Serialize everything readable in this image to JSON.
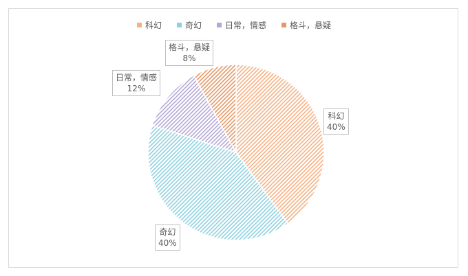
{
  "chart_data": {
    "type": "pie",
    "title": "",
    "legend_position": "top",
    "slices": [
      {
        "label": "科幻",
        "value": 40,
        "display": "40%",
        "color": "#F4B183"
      },
      {
        "label": "奇幻",
        "value": 40,
        "display": "40%",
        "color": "#8FD1E0"
      },
      {
        "label": "日常，情感",
        "value": 12,
        "display": "12%",
        "color": "#B4A7D6"
      },
      {
        "label": "格斗，悬疑",
        "value": 8,
        "display": "8%",
        "color": "#E59866"
      }
    ]
  }
}
